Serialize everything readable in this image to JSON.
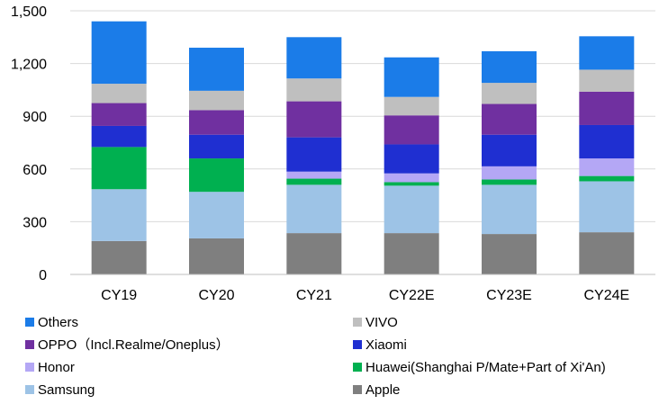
{
  "chart_data": {
    "type": "bar",
    "stacked": true,
    "categories": [
      "CY19",
      "CY20",
      "CY21",
      "CY22E",
      "CY23E",
      "CY24E"
    ],
    "ylim": [
      0,
      1500
    ],
    "yticks": [
      "0",
      "300",
      "600",
      "900",
      "1,200",
      "1,500"
    ],
    "ytick_values": [
      0,
      300,
      600,
      900,
      1200,
      1500
    ],
    "grid": true,
    "legend_position": "bottom",
    "series": [
      {
        "name": "Apple",
        "color": "#7f7f7f",
        "values": [
          190,
          205,
          235,
          235,
          230,
          240
        ]
      },
      {
        "name": "Samsung",
        "color": "#9dc3e6",
        "values": [
          295,
          265,
          275,
          270,
          280,
          290
        ]
      },
      {
        "name": "Huawei(Shanghai P/Mate+Part of Xi'An)",
        "color": "#00b050",
        "values": [
          240,
          190,
          35,
          20,
          30,
          30
        ]
      },
      {
        "name": "Honor",
        "color": "#b4a7f5",
        "values": [
          0,
          0,
          40,
          50,
          75,
          100
        ]
      },
      {
        "name": "Xiaomi",
        "color": "#1f2fd1",
        "values": [
          120,
          135,
          195,
          165,
          180,
          190
        ]
      },
      {
        "name": "OPPO（Incl.Realme/Oneplus）",
        "color": "#7030a0",
        "values": [
          130,
          140,
          205,
          165,
          175,
          190
        ]
      },
      {
        "name": "VIVO",
        "color": "#bfbfbf",
        "values": [
          110,
          110,
          130,
          105,
          120,
          125
        ]
      },
      {
        "name": "Others",
        "color": "#1b7ce8",
        "values": [
          355,
          245,
          235,
          225,
          180,
          190
        ]
      }
    ]
  },
  "legend": {
    "rows": [
      [
        "Others",
        "VIVO"
      ],
      [
        "OPPO（Incl.Realme/Oneplus）",
        "Xiaomi"
      ],
      [
        "Honor",
        "Huawei(Shanghai P/Mate+Part of Xi'An)"
      ],
      [
        "Samsung",
        "Apple"
      ]
    ]
  }
}
